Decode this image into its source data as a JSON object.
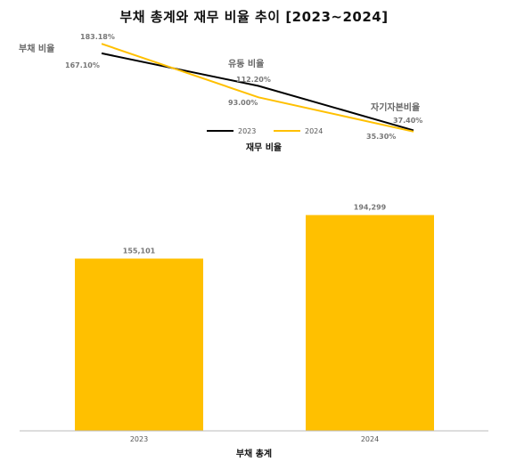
{
  "title": "부채 총계와 재무 비율 추이 [2023~2024]",
  "chart_data": [
    {
      "type": "line",
      "xlabel": "재무 비율",
      "categories": [
        "부채 비율",
        "유동 비율",
        "자기자본비율"
      ],
      "series": [
        {
          "name": "2023",
          "color": "#000000",
          "values": [
            167.1,
            112.2,
            37.4
          ],
          "labels": [
            "167.10%",
            "112.20%",
            "37.40%"
          ]
        },
        {
          "name": "2024",
          "color": "#FFC000",
          "values": [
            183.18,
            93.0,
            35.3
          ],
          "labels": [
            "183.18%",
            "93.00%",
            "35.30%"
          ]
        }
      ],
      "legend_position": "bottom-center",
      "grid": false
    },
    {
      "type": "bar",
      "xlabel": "부채 총계",
      "categories": [
        "2023",
        "2024"
      ],
      "values": [
        155101,
        194299
      ],
      "value_labels": [
        "155,101",
        "194,299"
      ],
      "color": "#FFC000",
      "ylim": [
        0,
        210000
      ],
      "grid": false
    }
  ]
}
